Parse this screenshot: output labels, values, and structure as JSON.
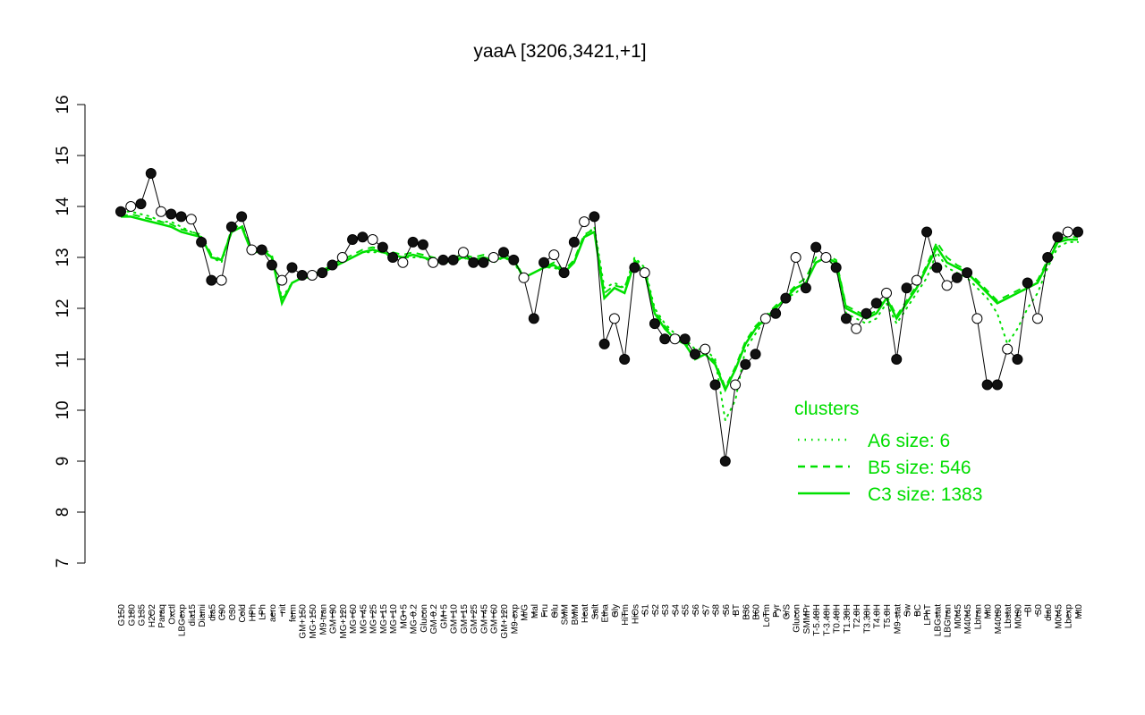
{
  "chart_data": {
    "type": "line",
    "title": "yaaA [3206,3421,+1]",
    "xlabel": "",
    "ylabel": "",
    "ylim": [
      7,
      16
    ],
    "yticks": [
      7,
      8,
      9,
      10,
      11,
      12,
      13,
      14,
      15,
      16
    ],
    "grid": false,
    "x_labels": [
      "G150",
      "G180",
      "G135",
      "H2O2",
      "Paraq",
      "Oxctl",
      "LBGexp",
      "dia15",
      "Diami",
      "dia5",
      "C90",
      "C30",
      "Cold",
      "HPh",
      "LPh",
      "aero",
      "nit",
      "ferm",
      "GM+150",
      "MG+150",
      "M9-tran",
      "GM+90",
      "MG+120",
      "MG+60",
      "MG+45",
      "MG+25",
      "MG+15",
      "MG+10",
      "MG+5",
      "MG-0.2",
      "Glucon",
      "GM-0.2",
      "GM+5",
      "GM+10",
      "GM+15",
      "GM+25",
      "GM+45",
      "GM+60",
      "GM+120",
      "M9-exp",
      "M/G",
      "Mal",
      "Fru",
      "Glu",
      "SMM",
      "BMM",
      "Heat",
      "Salt",
      "Etha",
      "Gly",
      "HiTm",
      "HiOs",
      "S1",
      "S2",
      "S3",
      "S4",
      "S5",
      "S6",
      "S7",
      "S8",
      "S6",
      "BT",
      "B36",
      "B60",
      "LoTm",
      "Pyr",
      "G/S",
      "Glucon",
      "SMMPr",
      "T-5.40H",
      "T-3.40H",
      "T0.40H",
      "T1.30H",
      "T2.0H",
      "T3.30H",
      "T4.0H",
      "T5.0H",
      "M9-stat",
      "Sw",
      "BC",
      "LPhT",
      "LBGstat",
      "LBGtran",
      "M0t45",
      "M40t45",
      "Lbtran",
      "Mt0",
      "M40t90",
      "Lbstat",
      "M0t90",
      "BI",
      "S0",
      "dia0",
      "M0t45",
      "Lbexp",
      "Mt0"
    ],
    "legend": {
      "title": "clusters",
      "placement": "right",
      "entries": [
        {
          "label": "A6 size: 6",
          "style": "dotted"
        },
        {
          "label": "B5 size: 546",
          "style": "dashed"
        },
        {
          "label": "C3 size: 1383",
          "style": "solid"
        }
      ]
    },
    "series": [
      {
        "style": "solid",
        "values": [
          13.8,
          13.8,
          13.75,
          13.7,
          13.65,
          13.6,
          13.5,
          13.45,
          13.4,
          13.0,
          12.95,
          13.5,
          13.6,
          13.1,
          13.15,
          13.0,
          12.1,
          12.5,
          12.6,
          12.65,
          12.7,
          12.8,
          12.9,
          13.0,
          13.1,
          13.15,
          13.1,
          13.05,
          13.0,
          13.05,
          13.0,
          12.95,
          12.9,
          12.95,
          13.0,
          12.95,
          13.0,
          12.95,
          13.0,
          12.95,
          12.6,
          12.7,
          12.8,
          12.85,
          12.7,
          12.9,
          13.4,
          13.5,
          12.2,
          12.4,
          12.3,
          12.9,
          12.7,
          11.9,
          11.6,
          11.4,
          11.3,
          11.0,
          11.1,
          10.9,
          10.4,
          10.8,
          11.3,
          11.6,
          11.8,
          12.0,
          12.2,
          12.4,
          12.5,
          12.9,
          13.0,
          12.9,
          12.0,
          11.9,
          11.8,
          11.9,
          12.2,
          11.8,
          12.1,
          12.4,
          12.8,
          13.2,
          12.9,
          12.8,
          12.7,
          12.5,
          12.3,
          12.1,
          12.2,
          12.3,
          12.4,
          12.5,
          12.9,
          13.3,
          13.35,
          13.35
        ]
      },
      {
        "style": "dashed",
        "values": [
          13.8,
          13.85,
          13.8,
          13.75,
          13.7,
          13.65,
          13.55,
          13.5,
          13.45,
          13.05,
          12.95,
          13.55,
          13.65,
          13.15,
          13.2,
          13.05,
          12.15,
          12.5,
          12.6,
          12.65,
          12.75,
          12.85,
          12.95,
          13.05,
          13.15,
          13.2,
          13.15,
          13.1,
          13.05,
          13.1,
          13.05,
          13.0,
          12.95,
          13.0,
          13.05,
          13.0,
          13.05,
          13.0,
          13.05,
          13.0,
          12.6,
          12.7,
          12.8,
          12.9,
          12.75,
          12.95,
          13.45,
          13.55,
          12.3,
          12.45,
          12.4,
          12.95,
          12.75,
          11.95,
          11.65,
          11.45,
          11.35,
          11.1,
          11.15,
          10.95,
          10.45,
          10.85,
          11.35,
          11.65,
          11.85,
          12.05,
          12.25,
          12.45,
          12.6,
          13.0,
          13.05,
          12.95,
          12.05,
          11.95,
          11.85,
          11.95,
          12.25,
          11.85,
          12.15,
          12.45,
          12.85,
          13.3,
          13.0,
          12.85,
          12.75,
          12.55,
          12.35,
          12.15,
          12.25,
          12.35,
          12.45,
          12.55,
          12.95,
          13.35,
          13.4,
          13.4
        ]
      },
      {
        "style": "dotted",
        "values": [
          13.9,
          13.9,
          13.85,
          13.8,
          13.7,
          13.7,
          13.6,
          13.5,
          13.4,
          13.0,
          12.9,
          13.5,
          13.6,
          13.1,
          13.1,
          13.0,
          12.2,
          12.5,
          12.6,
          12.6,
          12.7,
          12.8,
          12.9,
          13.0,
          13.1,
          13.1,
          13.1,
          13.0,
          13.0,
          13.0,
          13.0,
          12.9,
          12.9,
          12.9,
          13.0,
          12.9,
          13.0,
          12.9,
          13.0,
          12.9,
          12.6,
          12.7,
          12.8,
          12.8,
          12.7,
          12.9,
          13.4,
          13.6,
          12.4,
          12.5,
          12.4,
          13.0,
          12.8,
          12.0,
          11.7,
          11.5,
          11.4,
          11.2,
          11.2,
          11.0,
          9.8,
          10.2,
          11.2,
          11.5,
          11.8,
          12.0,
          12.2,
          12.3,
          12.5,
          12.9,
          13.0,
          12.8,
          11.9,
          11.8,
          11.7,
          11.8,
          12.1,
          11.7,
          12.0,
          12.3,
          12.6,
          13.1,
          12.8,
          12.7,
          12.6,
          12.4,
          12.2,
          11.9,
          11.3,
          11.6,
          12.0,
          12.3,
          12.8,
          13.2,
          13.3,
          13.3
        ]
      },
      {
        "style": "observations",
        "values": [
          13.9,
          14.0,
          14.05,
          14.65,
          13.9,
          13.85,
          13.8,
          13.75,
          13.3,
          12.55,
          12.55,
          13.6,
          13.8,
          13.15,
          13.15,
          12.85,
          12.55,
          12.8,
          12.65,
          12.65,
          12.7,
          12.85,
          13.0,
          13.35,
          13.4,
          13.35,
          13.2,
          13.0,
          12.9,
          13.3,
          13.25,
          12.9,
          12.95,
          12.95,
          13.1,
          12.9,
          12.9,
          13.0,
          13.1,
          12.95,
          12.6,
          11.8,
          12.9,
          13.05,
          12.7,
          13.3,
          13.7,
          13.8,
          11.3,
          11.8,
          11.0,
          12.8,
          12.7,
          11.7,
          11.4,
          11.4,
          11.4,
          11.1,
          11.2,
          10.5,
          9.0,
          10.5,
          10.9,
          11.1,
          11.8,
          11.9,
          12.2,
          13.0,
          12.4,
          13.2,
          13.0,
          12.8,
          11.8,
          11.6,
          11.9,
          12.1,
          12.3,
          11.0,
          12.4,
          12.55,
          13.5,
          12.8,
          12.45,
          12.6,
          12.7,
          11.8,
          10.5,
          10.5,
          11.2,
          11.0,
          12.5,
          11.8,
          13.0,
          13.4,
          13.5,
          13.5
        ]
      }
    ]
  }
}
